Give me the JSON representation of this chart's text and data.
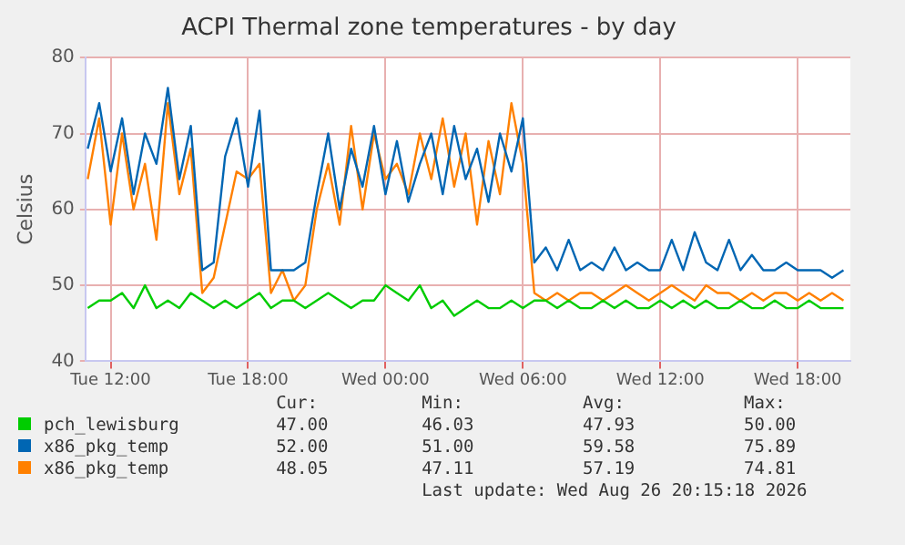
{
  "chart_data": {
    "type": "line",
    "title": "ACPI Thermal zone temperatures - by day",
    "ylabel": "Celsius",
    "x": [
      "2026-08-25T11:00",
      "2026-08-25T11:30",
      "2026-08-25T12:00",
      "2026-08-25T12:30",
      "2026-08-25T13:00",
      "2026-08-25T13:30",
      "2026-08-25T14:00",
      "2026-08-25T14:30",
      "2026-08-25T15:00",
      "2026-08-25T15:30",
      "2026-08-25T16:00",
      "2026-08-25T16:30",
      "2026-08-25T17:00",
      "2026-08-25T17:30",
      "2026-08-25T18:00",
      "2026-08-25T18:30",
      "2026-08-25T19:00",
      "2026-08-25T19:30",
      "2026-08-25T20:00",
      "2026-08-25T20:30",
      "2026-08-25T21:00",
      "2026-08-25T21:30",
      "2026-08-25T22:00",
      "2026-08-25T22:30",
      "2026-08-25T23:00",
      "2026-08-25T23:30",
      "2026-08-26T00:00",
      "2026-08-26T00:30",
      "2026-08-26T01:00",
      "2026-08-26T01:30",
      "2026-08-26T02:00",
      "2026-08-26T02:30",
      "2026-08-26T03:00",
      "2026-08-26T03:30",
      "2026-08-26T04:00",
      "2026-08-26T04:30",
      "2026-08-26T05:00",
      "2026-08-26T05:30",
      "2026-08-26T06:00",
      "2026-08-26T06:30",
      "2026-08-26T07:00",
      "2026-08-26T07:30",
      "2026-08-26T08:00",
      "2026-08-26T08:30",
      "2026-08-26T09:00",
      "2026-08-26T09:30",
      "2026-08-26T10:00",
      "2026-08-26T10:30",
      "2026-08-26T11:00",
      "2026-08-26T11:30",
      "2026-08-26T12:00",
      "2026-08-26T12:30",
      "2026-08-26T13:00",
      "2026-08-26T13:30",
      "2026-08-26T14:00",
      "2026-08-26T14:30",
      "2026-08-26T15:00",
      "2026-08-26T15:30",
      "2026-08-26T16:00",
      "2026-08-26T16:30",
      "2026-08-26T17:00",
      "2026-08-26T17:30",
      "2026-08-26T18:00",
      "2026-08-26T18:30",
      "2026-08-26T19:00",
      "2026-08-26T19:30",
      "2026-08-26T20:00"
    ],
    "series": [
      {
        "name": "pch_lewisburg",
        "color": "#00cc00",
        "values": [
          47,
          48,
          48,
          49,
          47,
          50,
          47,
          48,
          47,
          49,
          48,
          47,
          48,
          47,
          48,
          49,
          47,
          48,
          48,
          47,
          48,
          49,
          48,
          47,
          48,
          48,
          50,
          49,
          48,
          50,
          47,
          48,
          46,
          47,
          48,
          47,
          47,
          48,
          47,
          48,
          48,
          47,
          48,
          47,
          47,
          48,
          47,
          48,
          47,
          47,
          48,
          47,
          48,
          47,
          48,
          47,
          47,
          48,
          47,
          47,
          48,
          47,
          47,
          48,
          47,
          47,
          47
        ]
      },
      {
        "name": "x86_pkg_temp",
        "color": "#0066b3",
        "values": [
          68,
          74,
          65,
          72,
          62,
          70,
          66,
          76,
          64,
          71,
          52,
          53,
          67,
          72,
          63,
          73,
          52,
          52,
          52,
          53,
          62,
          70,
          60,
          68,
          63,
          71,
          62,
          69,
          61,
          66,
          70,
          62,
          71,
          64,
          68,
          61,
          70,
          65,
          72,
          53,
          55,
          52,
          56,
          52,
          53,
          52,
          55,
          52,
          53,
          52,
          52,
          56,
          52,
          57,
          53,
          52,
          56,
          52,
          54,
          52,
          52,
          53,
          52,
          52,
          52,
          51,
          52
        ]
      },
      {
        "name": "x86_pkg_temp",
        "color": "#ff8000",
        "values": [
          64,
          72,
          58,
          70,
          60,
          66,
          56,
          74,
          62,
          68,
          49,
          51,
          58,
          65,
          64,
          66,
          49,
          52,
          48,
          50,
          60,
          66,
          58,
          71,
          60,
          70,
          64,
          66,
          62,
          70,
          64,
          72,
          63,
          70,
          58,
          69,
          62,
          74,
          66,
          49,
          48,
          49,
          48,
          49,
          49,
          48,
          49,
          50,
          49,
          48,
          49,
          50,
          49,
          48,
          50,
          49,
          49,
          48,
          49,
          48,
          49,
          49,
          48,
          49,
          48,
          49,
          48
        ]
      }
    ],
    "xlim": [
      "2026-08-25T10:54",
      "2026-08-26T20:18"
    ],
    "xticks": [
      {
        "value": "2026-08-25T12:00",
        "label": "Tue 12:00"
      },
      {
        "value": "2026-08-25T18:00",
        "label": "Tue 18:00"
      },
      {
        "value": "2026-08-26T00:00",
        "label": "Wed 00:00"
      },
      {
        "value": "2026-08-26T06:00",
        "label": "Wed 06:00"
      },
      {
        "value": "2026-08-26T12:00",
        "label": "Wed 12:00"
      },
      {
        "value": "2026-08-26T18:00",
        "label": "Wed 18:00"
      }
    ],
    "ylim": [
      40,
      80
    ],
    "yticks": [
      40,
      50,
      60,
      70,
      80
    ],
    "grid": true,
    "legend": "bottom",
    "marker": "none",
    "line_style": "solid",
    "annotations": [
      "Cur:",
      "Min:",
      "Avg:",
      "Max:",
      "47.00",
      "46.03",
      "47.93",
      "50.00",
      "52.00",
      "51.00",
      "59.58",
      "75.89",
      "48.05",
      "47.11",
      "57.19",
      "74.81",
      "Last update: Wed Aug 26 20:15:18 2026"
    ]
  }
}
